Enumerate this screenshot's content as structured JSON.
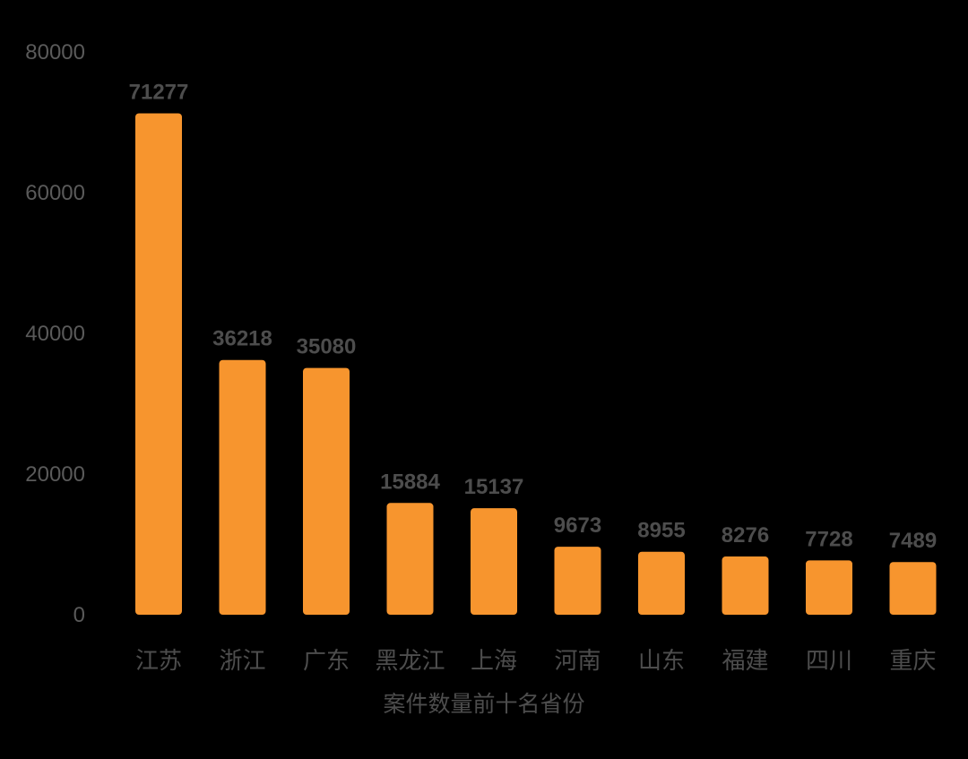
{
  "chart_data": {
    "type": "bar",
    "categories": [
      "江苏",
      "浙江",
      "广东",
      "黑龙江",
      "上海",
      "河南",
      "山东",
      "福建",
      "四川",
      "重庆"
    ],
    "values": [
      71277,
      36218,
      35080,
      15884,
      15137,
      9673,
      8955,
      8276,
      7728,
      7489
    ],
    "xlabel": "案件数量前十名省份",
    "ylabel": "",
    "ylim": [
      0,
      80000
    ],
    "yticks": [
      "0",
      "20000",
      "40000",
      "60000",
      "80000"
    ],
    "grid": false,
    "legend": "none",
    "colors": {
      "background": "#000000",
      "bar": "#f7952e",
      "text": "#4d4d4d",
      "tick": "#5a5a5a"
    }
  }
}
